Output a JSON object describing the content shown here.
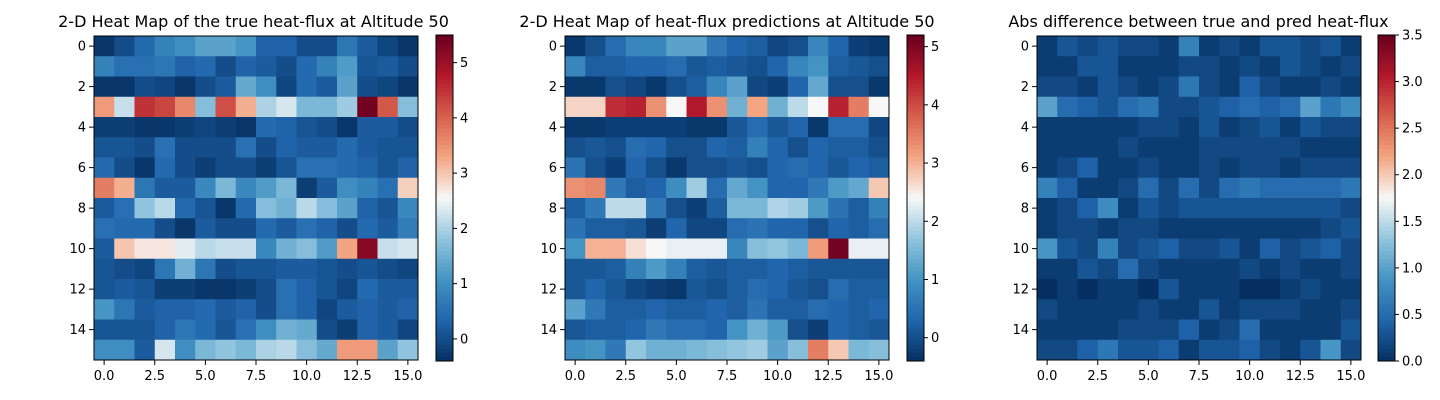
{
  "chart_data": [
    {
      "type": "heatmap",
      "title": "2-D Heat Map of the true heat-flux at Altitude 50",
      "x_ticks": [
        "0.0",
        "2.5",
        "5.0",
        "7.5",
        "10.0",
        "12.5",
        "15.0"
      ],
      "y_ticks": [
        "0",
        "2",
        "4",
        "6",
        "8",
        "10",
        "12",
        "14"
      ],
      "colormap": "RdBu_r",
      "colorbar_range": [
        -0.4,
        5.5
      ],
      "colorbar_ticks": [
        "0",
        "1",
        "2",
        "3",
        "4",
        "5"
      ],
      "values": [
        [
          -0.3,
          0.0,
          0.4,
          0.8,
          1.0,
          1.3,
          1.3,
          1.1,
          0.3,
          0.3,
          0.0,
          0.0,
          0.6,
          0.2,
          -0.1,
          -0.3
        ],
        [
          0.8,
          0.5,
          0.5,
          0.6,
          0.3,
          0.4,
          0.0,
          0.3,
          0.2,
          0.0,
          0.4,
          0.8,
          1.2,
          0.1,
          0.2,
          0.0
        ],
        [
          -0.3,
          -0.3,
          0.0,
          -0.1,
          -0.3,
          0.0,
          0.2,
          1.4,
          1.0,
          -0.1,
          0.4,
          0.2,
          1.3,
          0.0,
          -0.1,
          -0.3
        ],
        [
          3.4,
          2.2,
          4.5,
          4.3,
          3.6,
          1.7,
          4.2,
          3.2,
          2.0,
          2.3,
          1.6,
          1.6,
          1.9,
          5.4,
          4.1,
          1.7
        ],
        [
          -0.2,
          -0.2,
          -0.3,
          -0.3,
          -0.2,
          -0.1,
          -0.2,
          -0.3,
          0.4,
          0.3,
          0.1,
          0.0,
          -0.3,
          0.2,
          0.2,
          0.0
        ],
        [
          0.1,
          0.1,
          0.0,
          0.5,
          0.0,
          0.0,
          0.0,
          0.5,
          0.0,
          0.3,
          0.2,
          0.2,
          0.4,
          0.2,
          0.1,
          0.1
        ],
        [
          0.4,
          0.0,
          -0.3,
          0.4,
          0.0,
          -0.2,
          0.0,
          0.0,
          -0.2,
          0.1,
          0.5,
          0.5,
          0.4,
          0.3,
          0.1,
          0.3
        ],
        [
          3.7,
          3.2,
          0.6,
          0.2,
          0.2,
          0.9,
          1.6,
          0.9,
          1.2,
          1.6,
          -0.2,
          0.2,
          1.0,
          0.8,
          0.5,
          2.9
        ],
        [
          0.2,
          0.5,
          1.8,
          2.1,
          0.4,
          0.1,
          -0.3,
          0.4,
          1.7,
          1.5,
          2.1,
          1.7,
          1.3,
          0.3,
          0.1,
          0.9
        ],
        [
          0.5,
          0.4,
          0.4,
          0.0,
          -0.3,
          0.2,
          0.0,
          0.0,
          0.4,
          0.2,
          0.5,
          0.3,
          0.0,
          0.4,
          0.2,
          0.7
        ],
        [
          0.2,
          3.0,
          2.7,
          2.7,
          2.4,
          2.1,
          2.2,
          2.2,
          0.9,
          1.5,
          1.7,
          1.2,
          3.3,
          5.2,
          2.2,
          2.3
        ],
        [
          0.1,
          0.0,
          -0.1,
          0.6,
          1.5,
          0.6,
          0.0,
          0.1,
          0.1,
          0.2,
          0.2,
          0.1,
          0.0,
          0.1,
          0.0,
          -0.1
        ],
        [
          0.1,
          0.2,
          0.1,
          -0.2,
          -0.2,
          -0.3,
          -0.3,
          -0.2,
          0.0,
          0.5,
          0.3,
          0.1,
          -0.1,
          0.4,
          0.2,
          0.2
        ],
        [
          1.1,
          0.6,
          0.2,
          0.3,
          0.3,
          0.4,
          0.2,
          0.3,
          0.0,
          0.5,
          0.3,
          -0.1,
          0.2,
          0.3,
          0.2,
          0.3
        ],
        [
          0.1,
          0.1,
          0.1,
          0.3,
          0.6,
          0.4,
          0.1,
          0.5,
          1.0,
          1.5,
          1.4,
          0.0,
          -0.2,
          0.3,
          0.2,
          -0.1
        ],
        [
          1.0,
          1.0,
          0.2,
          2.3,
          1.0,
          1.6,
          1.8,
          1.6,
          2.0,
          2.1,
          1.7,
          1.4,
          3.4,
          3.4,
          1.3,
          1.8
        ]
      ]
    },
    {
      "type": "heatmap",
      "title": "2-D Heat Map of heat-flux predictions at Altitude 50",
      "x_ticks": [
        "0.0",
        "2.5",
        "5.0",
        "7.5",
        "10.0",
        "12.5",
        "15.0"
      ],
      "y_ticks": [
        "0",
        "2",
        "4",
        "6",
        "8",
        "10",
        "12",
        "14"
      ],
      "colormap": "RdBu_r",
      "colorbar_range": [
        -0.4,
        5.2
      ],
      "colorbar_ticks": [
        "0",
        "1",
        "2",
        "3",
        "4",
        "5"
      ],
      "values": [
        [
          -0.3,
          0.0,
          0.4,
          0.8,
          0.8,
          1.2,
          1.2,
          0.6,
          0.3,
          0.2,
          -0.1,
          0.0,
          0.8,
          0.3,
          -0.2,
          -0.3
        ],
        [
          0.8,
          0.2,
          0.2,
          0.3,
          0.3,
          0.4,
          0.1,
          0.2,
          0.1,
          0.0,
          0.3,
          0.8,
          1.0,
          0.2,
          0.1,
          0.0
        ],
        [
          -0.3,
          -0.3,
          0.0,
          -0.1,
          -0.3,
          0.0,
          0.2,
          0.8,
          1.2,
          -0.1,
          -0.2,
          0.3,
          1.3,
          0.0,
          0.0,
          -0.3
        ],
        [
          2.7,
          2.7,
          4.3,
          4.4,
          3.3,
          2.4,
          4.5,
          3.3,
          1.4,
          3.1,
          1.4,
          2.0,
          2.4,
          4.4,
          3.5,
          2.4
        ],
        [
          -0.3,
          -0.3,
          -0.2,
          -0.2,
          -0.2,
          -0.2,
          -0.3,
          -0.3,
          0.1,
          0.4,
          0.1,
          0.3,
          -0.3,
          0.4,
          0.4,
          -0.1
        ],
        [
          0.0,
          0.1,
          0.0,
          0.4,
          0.3,
          0.0,
          0.0,
          0.3,
          0.2,
          0.7,
          0.3,
          0.0,
          0.3,
          0.2,
          0.2,
          0.0
        ],
        [
          0.5,
          0.0,
          -0.2,
          0.3,
          0.0,
          -0.3,
          0.0,
          0.0,
          0.1,
          0.0,
          0.3,
          0.4,
          0.3,
          0.1,
          0.3,
          0.2
        ],
        [
          3.3,
          3.4,
          0.6,
          0.2,
          0.3,
          0.9,
          1.8,
          0.4,
          1.3,
          1.0,
          0.3,
          0.3,
          0.6,
          1.1,
          1.3,
          2.8
        ],
        [
          0.2,
          0.6,
          2.0,
          2.0,
          0.6,
          0.0,
          -0.2,
          0.2,
          1.5,
          1.5,
          1.9,
          1.8,
          1.1,
          0.5,
          0.2,
          0.7
        ],
        [
          0.5,
          0.2,
          0.2,
          0.1,
          -0.2,
          0.3,
          -0.1,
          -0.1,
          0.4,
          0.5,
          0.3,
          0.3,
          0.0,
          0.3,
          0.2,
          0.4
        ],
        [
          1.0,
          3.0,
          3.0,
          2.6,
          2.4,
          2.3,
          2.3,
          2.3,
          0.8,
          1.6,
          1.7,
          1.5,
          3.2,
          5.1,
          2.3,
          2.3
        ],
        [
          0.1,
          0.1,
          0.2,
          0.7,
          1.1,
          0.7,
          0.2,
          0.1,
          0.2,
          0.2,
          0.3,
          0.2,
          0.1,
          0.1,
          0.1,
          0.1
        ],
        [
          0.1,
          0.3,
          0.1,
          -0.1,
          -0.2,
          -0.3,
          0.1,
          0.0,
          0.2,
          0.4,
          0.3,
          0.1,
          0.0,
          0.4,
          0.2,
          0.2
        ],
        [
          1.2,
          0.6,
          0.2,
          0.2,
          0.3,
          0.2,
          0.2,
          0.3,
          0.2,
          0.5,
          0.2,
          0.2,
          0.4,
          0.3,
          0.2,
          0.3
        ],
        [
          0.1,
          0.2,
          0.2,
          0.3,
          0.6,
          0.4,
          0.4,
          0.3,
          1.0,
          1.4,
          1.1,
          0.0,
          -0.2,
          0.3,
          0.2,
          0.1
        ],
        [
          0.9,
          1.0,
          0.6,
          1.7,
          1.4,
          1.4,
          1.5,
          1.6,
          1.7,
          1.8,
          1.2,
          1.6,
          3.5,
          2.8,
          1.5,
          1.6
        ]
      ]
    },
    {
      "type": "heatmap",
      "title": "Abs difference between true and pred heat-flux",
      "x_ticks": [
        "0.0",
        "2.5",
        "5.0",
        "7.5",
        "10.0",
        "12.5",
        "15.0"
      ],
      "y_ticks": [
        "0",
        "2",
        "4",
        "6",
        "8",
        "10",
        "12",
        "14"
      ],
      "colormap": "RdBu_r",
      "colorbar_range": [
        0.0,
        3.5
      ],
      "colorbar_ticks": [
        "0.0",
        "0.5",
        "1.0",
        "1.5",
        "2.0",
        "2.5",
        "3.0",
        "3.5"
      ],
      "values": [
        [
          0.1,
          0.3,
          0.2,
          0.3,
          0.2,
          0.2,
          0.1,
          0.7,
          0.1,
          0.2,
          0.1,
          0.3,
          0.3,
          0.2,
          0.3,
          0.1
        ],
        [
          0.1,
          0.1,
          0.3,
          0.3,
          0.1,
          0.1,
          0.1,
          0.2,
          0.2,
          0.1,
          0.2,
          0.1,
          0.3,
          0.2,
          0.1,
          0.2
        ],
        [
          0.2,
          0.2,
          0.1,
          0.3,
          0.2,
          0.1,
          0.2,
          0.6,
          0.2,
          0.1,
          0.4,
          0.2,
          0.1,
          0.1,
          0.2,
          0.1
        ],
        [
          1.0,
          0.5,
          0.4,
          0.3,
          0.5,
          0.6,
          0.2,
          0.2,
          0.3,
          0.4,
          0.5,
          0.4,
          0.5,
          1.0,
          0.6,
          0.8
        ],
        [
          0.1,
          0.1,
          0.1,
          0.1,
          0.1,
          0.2,
          0.2,
          0.1,
          0.3,
          0.1,
          0.2,
          0.3,
          0.1,
          0.3,
          0.2,
          0.2
        ],
        [
          0.1,
          0.1,
          0.1,
          0.1,
          0.2,
          0.1,
          0.1,
          0.1,
          0.2,
          0.2,
          0.2,
          0.2,
          0.2,
          0.1,
          0.1,
          0.1
        ],
        [
          0.1,
          0.2,
          0.4,
          0.1,
          0.1,
          0.2,
          0.1,
          0.1,
          0.2,
          0.1,
          0.2,
          0.2,
          0.1,
          0.2,
          0.2,
          0.2
        ],
        [
          0.7,
          0.4,
          0.1,
          0.1,
          0.2,
          0.5,
          0.2,
          0.5,
          0.2,
          0.5,
          0.6,
          0.5,
          0.5,
          0.5,
          0.5,
          0.6
        ],
        [
          0.1,
          0.2,
          0.4,
          0.8,
          0.1,
          0.3,
          0.2,
          0.3,
          0.3,
          0.3,
          0.3,
          0.3,
          0.3,
          0.3,
          0.3,
          0.2
        ],
        [
          0.1,
          0.2,
          0.2,
          0.1,
          0.2,
          0.2,
          0.1,
          0.1,
          0.1,
          0.1,
          0.1,
          0.1,
          0.1,
          0.1,
          0.2,
          0.3
        ],
        [
          0.9,
          0.3,
          0.2,
          0.7,
          0.2,
          0.3,
          0.4,
          0.2,
          0.2,
          0.3,
          0.1,
          0.4,
          0.2,
          0.3,
          0.4,
          0.2
        ],
        [
          0.1,
          0.1,
          0.3,
          0.2,
          0.5,
          0.2,
          0.1,
          0.1,
          0.1,
          0.1,
          0.2,
          0.1,
          0.2,
          0.1,
          0.1,
          0.2
        ],
        [
          0.0,
          0.1,
          0.0,
          0.1,
          0.1,
          0.0,
          0.3,
          0.1,
          0.1,
          0.1,
          0.0,
          0.0,
          0.1,
          0.2,
          0.1,
          0.1
        ],
        [
          0.2,
          0.1,
          0.1,
          0.1,
          0.1,
          0.2,
          0.1,
          0.1,
          0.3,
          0.1,
          0.2,
          0.2,
          0.2,
          0.1,
          0.1,
          0.2
        ],
        [
          0.1,
          0.1,
          0.1,
          0.1,
          0.2,
          0.2,
          0.2,
          0.4,
          0.1,
          0.2,
          0.5,
          0.1,
          0.1,
          0.1,
          0.1,
          0.3
        ],
        [
          0.2,
          0.2,
          0.4,
          0.6,
          0.3,
          0.3,
          0.4,
          0.1,
          0.3,
          0.3,
          0.4,
          0.2,
          0.1,
          0.3,
          0.9,
          0.2
        ]
      ]
    }
  ]
}
